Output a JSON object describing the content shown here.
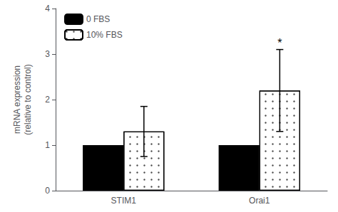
{
  "chart_data": {
    "type": "bar",
    "categories": [
      "STIM1",
      "Orai1"
    ],
    "series": [
      {
        "name": "0 FBS",
        "color": "#000000",
        "values": [
          1.0,
          1.0
        ]
      },
      {
        "name": "10% FBS",
        "color": "#ffffff",
        "values": [
          1.3,
          2.2
        ],
        "errors": [
          0.55,
          0.9
        ]
      }
    ],
    "ylabel": "mRNA expression\n(relative to control)",
    "ylim": [
      0,
      4
    ],
    "yticks": [
      0,
      1,
      2,
      3,
      4
    ],
    "grid": false,
    "legend": "upper left",
    "annotations": [
      {
        "text": "*",
        "category": "Orai1",
        "series": "10% FBS",
        "y": 3.12
      }
    ]
  }
}
